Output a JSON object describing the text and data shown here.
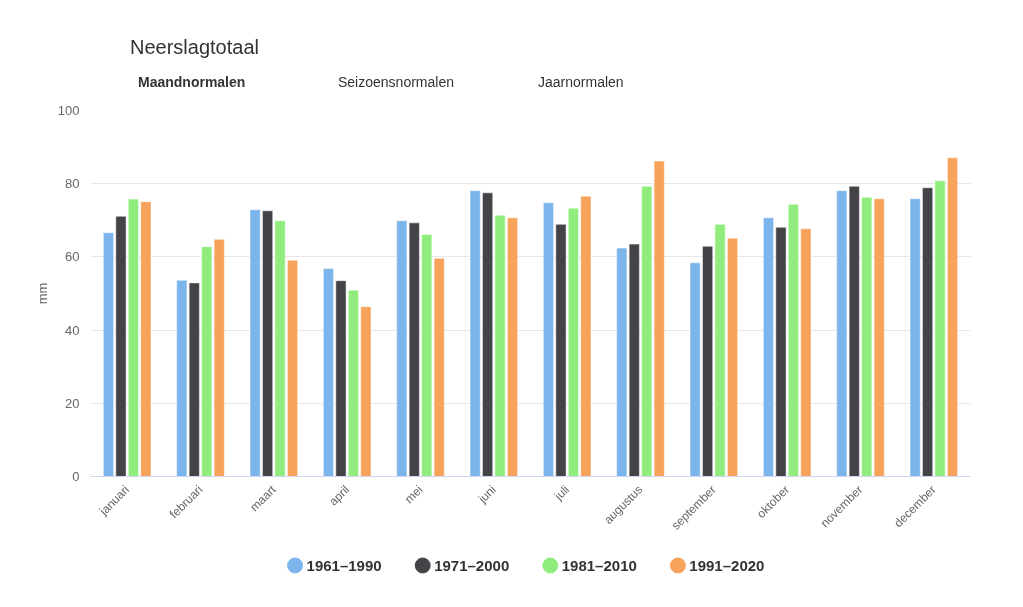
{
  "chart_data": {
    "type": "bar",
    "title": "Neerslagtotaal",
    "ylabel": "mm",
    "annotations": [
      "Maandnormalen",
      "Seizoensnormalen",
      "Jaarnormalen"
    ],
    "categories": [
      "januari",
      "februari",
      "maart",
      "april",
      "mei",
      "juni",
      "juli",
      "augustus",
      "september",
      "oktober",
      "november",
      "december"
    ],
    "series": [
      {
        "name": "1961–1990",
        "color": "#7cb5ec",
        "values": [
          66.6,
          53.6,
          72.9,
          56.8,
          69.9,
          78.1,
          74.8,
          62.4,
          58.4,
          70.7,
          78.1,
          75.9
        ]
      },
      {
        "name": "1971–2000",
        "color": "#434348",
        "values": [
          71.1,
          52.9,
          72.6,
          53.5,
          69.3,
          77.5,
          68.9,
          63.5,
          62.9,
          68.1,
          79.3,
          78.9
        ]
      },
      {
        "name": "1981–2010",
        "color": "#90ed7d",
        "values": [
          75.8,
          62.8,
          69.9,
          50.9,
          66.1,
          71.4,
          73.3,
          79.3,
          68.9,
          74.4,
          76.3,
          80.8
        ]
      },
      {
        "name": "1991–2020",
        "color": "#f7a35c",
        "values": [
          75.1,
          64.8,
          59.1,
          46.4,
          59.6,
          70.7,
          76.6,
          86.2,
          65.1,
          67.7,
          75.9,
          87.1
        ]
      }
    ],
    "ylim": [
      0,
      100
    ],
    "yticks": [
      0,
      20,
      40,
      60,
      80,
      100
    ],
    "grid": "y",
    "legend": "bottom"
  }
}
